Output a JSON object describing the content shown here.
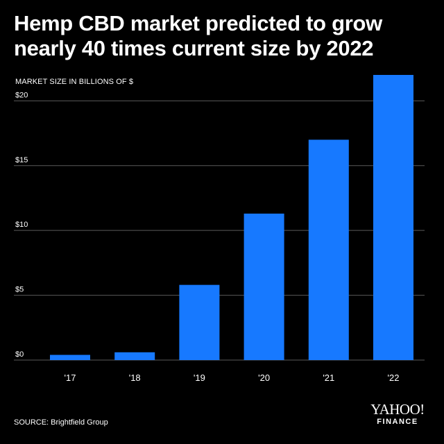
{
  "header": {
    "title_line1": "Hemp CBD market predicted to grow",
    "title_line2": "nearly 40 times current size by 2022"
  },
  "footer": {
    "source": "SOURCE: Brightfield Group",
    "logo_main": "YAHOO!",
    "logo_sub": "FINANCE"
  },
  "chart_data": {
    "type": "bar",
    "title": "Hemp CBD market predicted to grow nearly 40 times current size by 2022",
    "ylabel": "MARKET SIZE IN BILLIONS OF $",
    "xlabel": "",
    "categories": [
      "'17",
      "'18",
      "'19",
      "'20",
      "'21",
      "'22"
    ],
    "values": [
      0.4,
      0.6,
      5.8,
      11.3,
      17.0,
      22.0
    ],
    "ylim": [
      0,
      22
    ],
    "yticks": [
      0,
      5,
      10,
      15,
      20
    ],
    "ytick_labels": [
      "$0",
      "$5",
      "$10",
      "$15",
      "$20"
    ],
    "grid": true,
    "colors": {
      "bar": "#1779ff",
      "grid": "#5a5a5a",
      "background": "#000000",
      "text": "#ffffff"
    }
  }
}
